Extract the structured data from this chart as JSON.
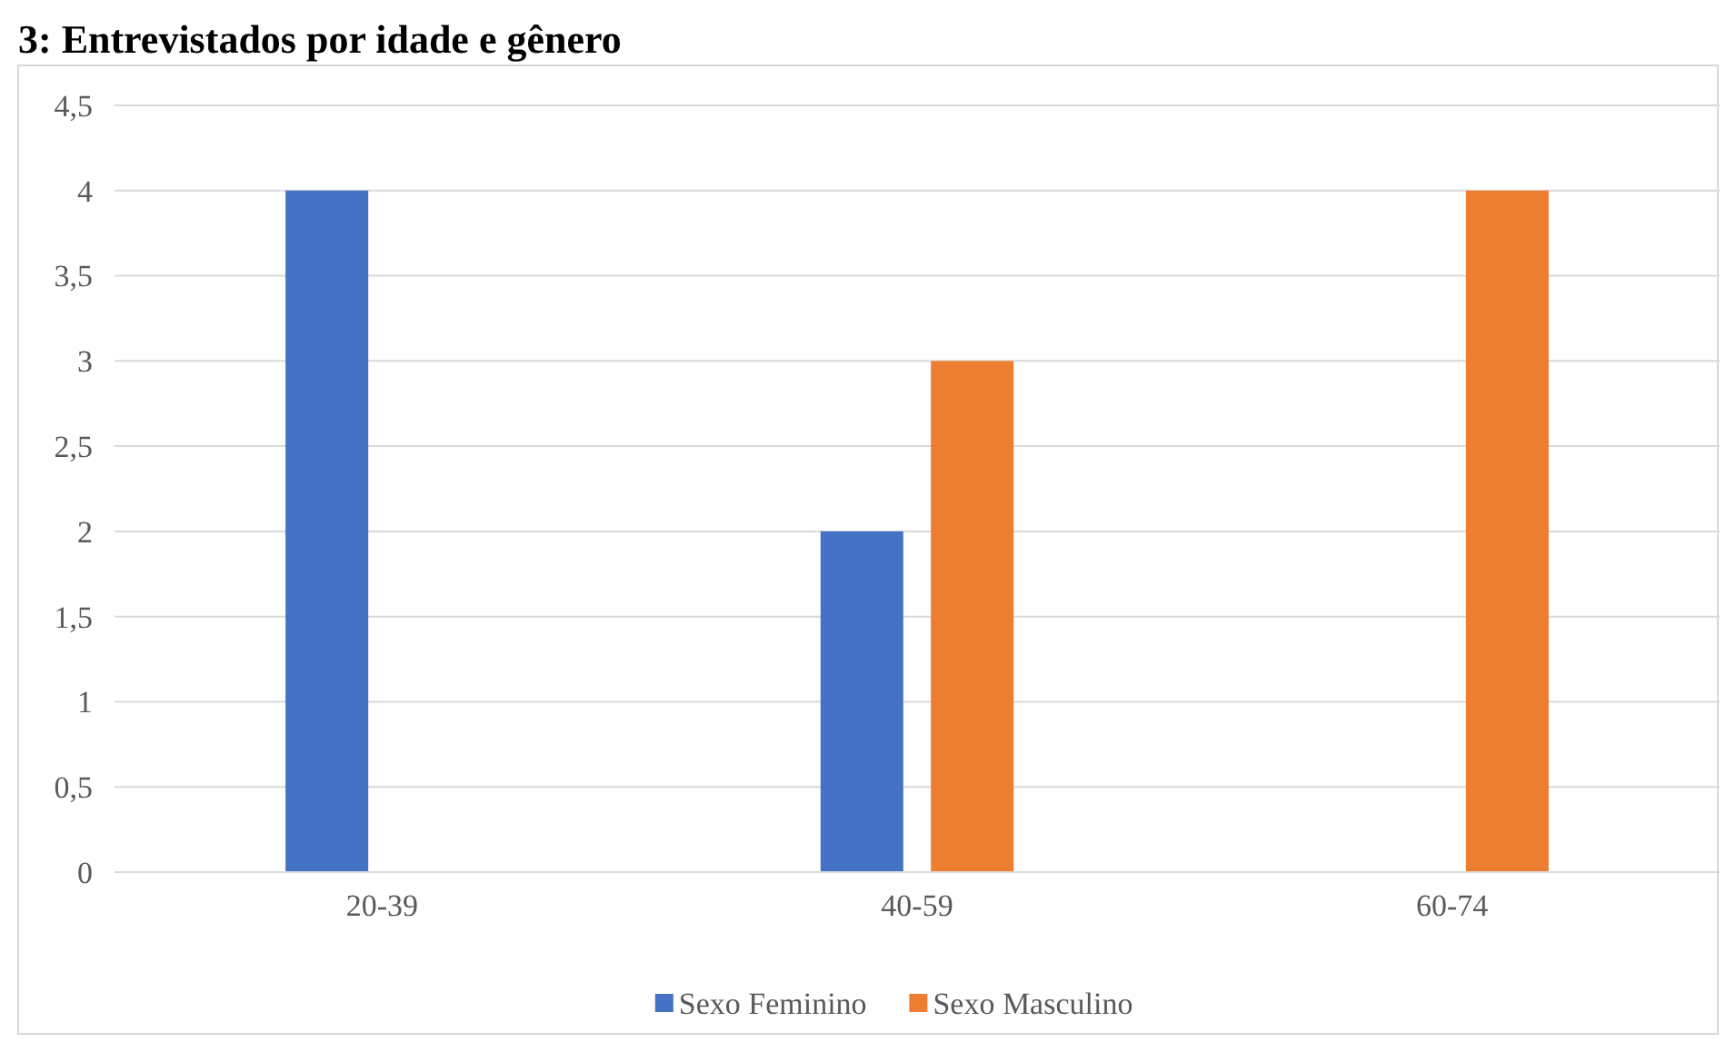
{
  "chart_data": {
    "type": "bar",
    "title": "3: Entrevistados por idade e gênero",
    "categories": [
      "20-39",
      "40-59",
      "60-74"
    ],
    "series": [
      {
        "name": "Sexo Feminino",
        "color": "#4472c4",
        "values": [
          4,
          2,
          0
        ]
      },
      {
        "name": "Sexo Masculino",
        "color": "#ed7d31",
        "values": [
          0,
          3,
          4
        ]
      }
    ],
    "ylim": [
      0,
      4.5
    ],
    "yticks": [
      {
        "value": 0,
        "label": "0"
      },
      {
        "value": 0.5,
        "label": "0,5"
      },
      {
        "value": 1,
        "label": "1"
      },
      {
        "value": 1.5,
        "label": "1,5"
      },
      {
        "value": 2,
        "label": "2"
      },
      {
        "value": 2.5,
        "label": "2,5"
      },
      {
        "value": 3,
        "label": "3"
      },
      {
        "value": 3.5,
        "label": "3,5"
      },
      {
        "value": 4,
        "label": "4"
      },
      {
        "value": 4.5,
        "label": "4,5"
      }
    ],
    "grid": "y",
    "legend": "bottom"
  }
}
